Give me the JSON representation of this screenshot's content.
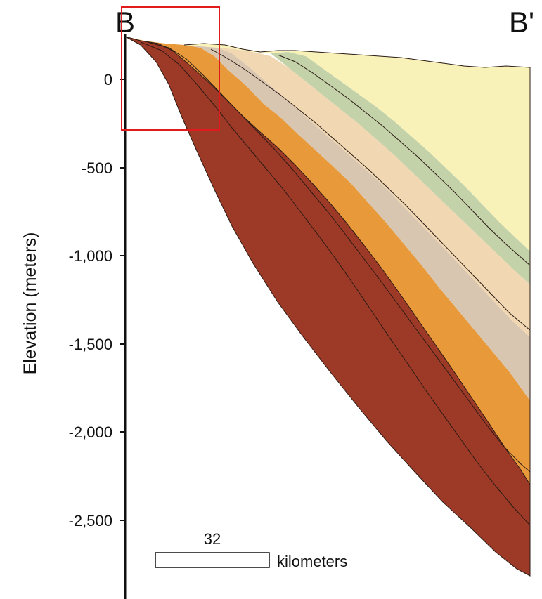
{
  "section": {
    "start_label": "B",
    "end_label": "B'",
    "y_axis_title": "Elevation (meters)",
    "y_ticks": [
      {
        "value": 0,
        "label": "0"
      },
      {
        "value": -500,
        "label": "-500"
      },
      {
        "value": -1000,
        "label": "-1,000"
      },
      {
        "value": -1500,
        "label": "-1,500"
      },
      {
        "value": -2000,
        "label": "-2,000"
      },
      {
        "value": -2500,
        "label": "-2,500"
      }
    ],
    "scale_bar": {
      "value": "32",
      "unit": "kilometers"
    },
    "highlight_box_color": "#e11b1b",
    "layer_colors": {
      "top_yellow": "#f8f1b8",
      "green": "#c4d2a9",
      "peach": "#f1d8b2",
      "grey_tan": "#d8c6b1",
      "orange": "#e89a3b",
      "dark_red_brown": "#9c3a27"
    }
  }
}
